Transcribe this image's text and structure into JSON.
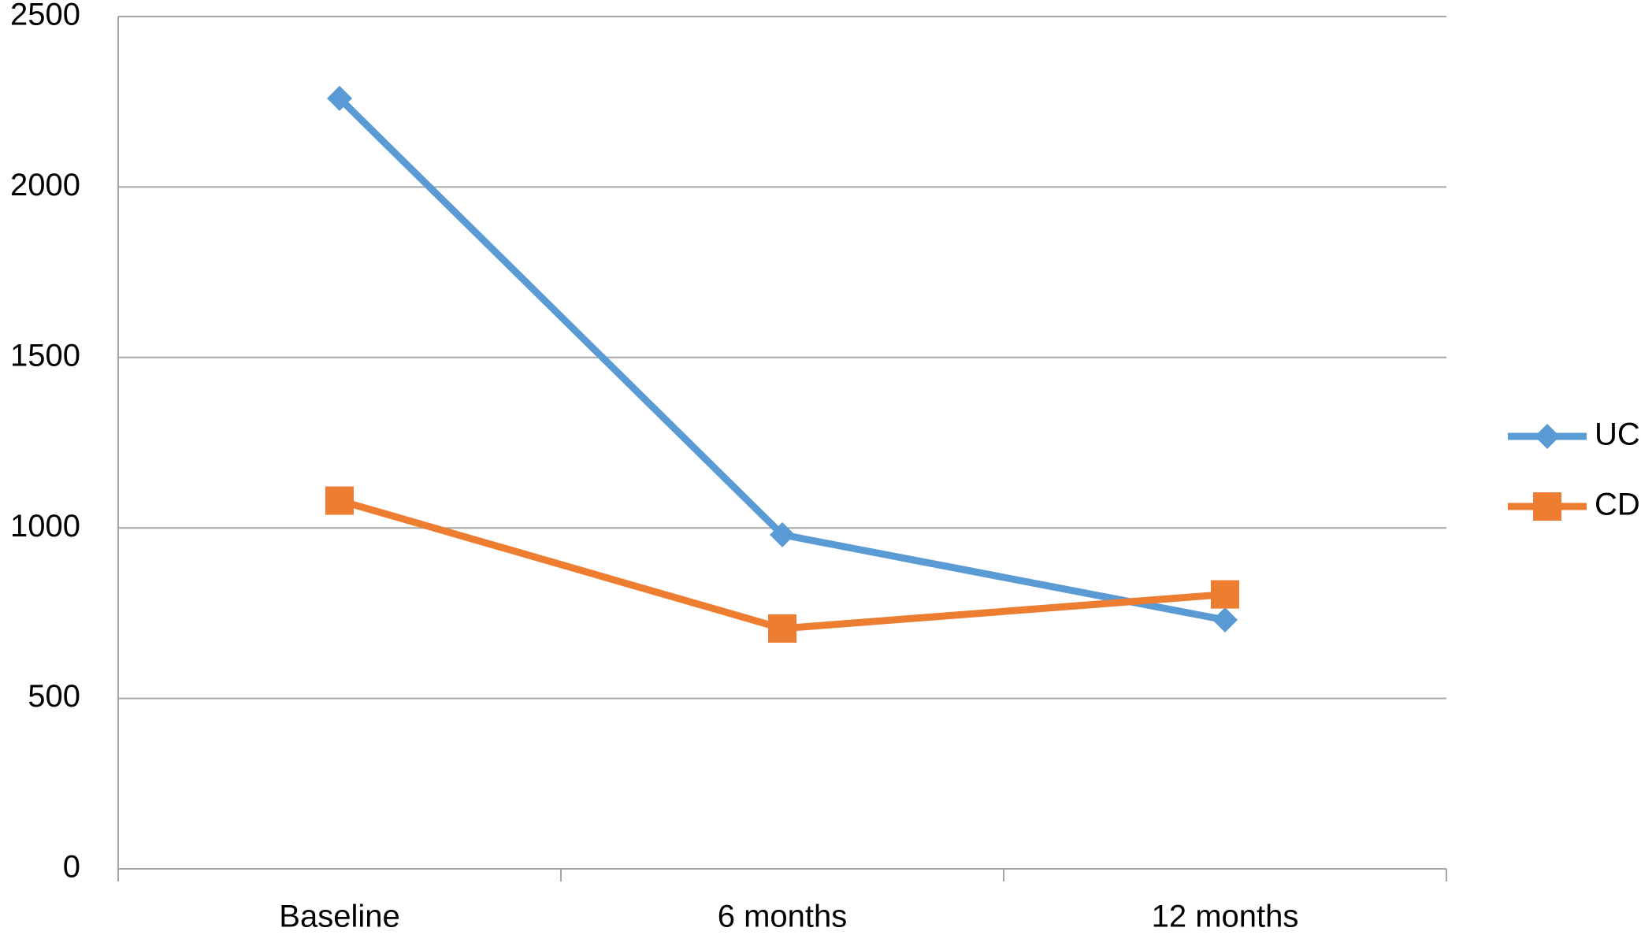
{
  "chart_data": {
    "type": "line",
    "categories": [
      "Baseline",
      "6 months",
      "12 months"
    ],
    "series": [
      {
        "name": "UC",
        "color": "#5b9bd5",
        "marker": "diamond",
        "values": [
          2260,
          980,
          730
        ]
      },
      {
        "name": "CD",
        "color": "#ed7d31",
        "marker": "square",
        "values": [
          1080,
          705,
          805
        ]
      }
    ],
    "ylim": [
      0,
      2500
    ],
    "yticks": [
      0,
      500,
      1000,
      1500,
      2000,
      2500
    ],
    "grid": true,
    "legend": "right"
  }
}
